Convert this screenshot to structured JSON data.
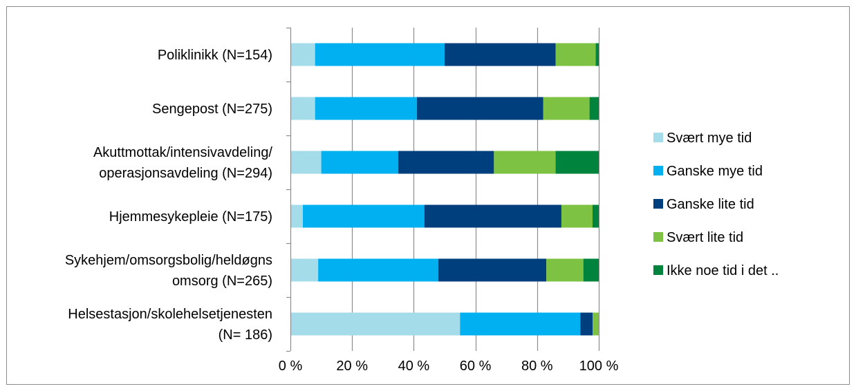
{
  "chart_data": {
    "type": "bar",
    "orientation": "horizontal",
    "stacked": "percent",
    "categories": [
      [
        "Poliklinikk (N=154)"
      ],
      [
        "Sengepost (N=275)"
      ],
      [
        "Akuttmottak/intensivavdeling/",
        "operasjonsavdeling (N=294)"
      ],
      [
        "Hjemmesykepleie (N=175)"
      ],
      [
        "Sykehjem/omsorgsbolig/heldøgns",
        "omsorg (N=265)"
      ],
      [
        "Helsestasjon/skolehelsetjenesten",
        "(N= 186)"
      ]
    ],
    "series": [
      {
        "name": "Svært mye tid",
        "color": "#a5dcea",
        "values": [
          8,
          8,
          10,
          4,
          9,
          55
        ]
      },
      {
        "name": "Ganske mye tid",
        "color": "#00b0f0",
        "values": [
          42,
          33,
          25,
          39,
          39,
          39
        ]
      },
      {
        "name": "Ganske lite tid",
        "color": "#003f7d",
        "values": [
          36,
          41,
          31,
          44,
          35,
          4
        ]
      },
      {
        "name": "Svært lite tid",
        "color": "#7dc242",
        "values": [
          13,
          15,
          20,
          10,
          12,
          2
        ]
      },
      {
        "name": "Ikke noe tid i det ..",
        "color": "#00843d",
        "values": [
          1,
          3,
          14,
          2,
          5,
          0
        ]
      }
    ],
    "x_ticks": [
      "0 %",
      "20 %",
      "40 %",
      "60 %",
      "80 %",
      "100 %"
    ],
    "xlim": [
      0,
      100
    ],
    "grid": true,
    "legend_position": "right"
  }
}
